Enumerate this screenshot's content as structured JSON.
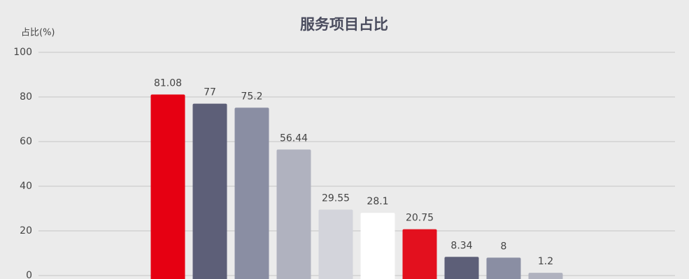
{
  "chart_data": {
    "type": "bar",
    "title": "服务项目占比",
    "y_label": "占比(%)",
    "categories": [
      null,
      null,
      null,
      null,
      null,
      null,
      null,
      null,
      null,
      null
    ],
    "values": [
      81.08,
      77,
      75.2,
      56.44,
      29.55,
      28.1,
      20.75,
      8.34,
      8,
      1.2
    ],
    "colors": [
      "#e60012",
      "#5d5f78",
      "#8a8ea3",
      "#b0b2bf",
      "#d3d4db",
      "#ffffff",
      "#e3101e",
      "#5d5f78",
      "#8a8ea3",
      "#b0b2bf"
    ],
    "ylim": [
      0,
      100
    ],
    "yticks": [
      0,
      20,
      40,
      60,
      80,
      100
    ],
    "grid": true
  }
}
